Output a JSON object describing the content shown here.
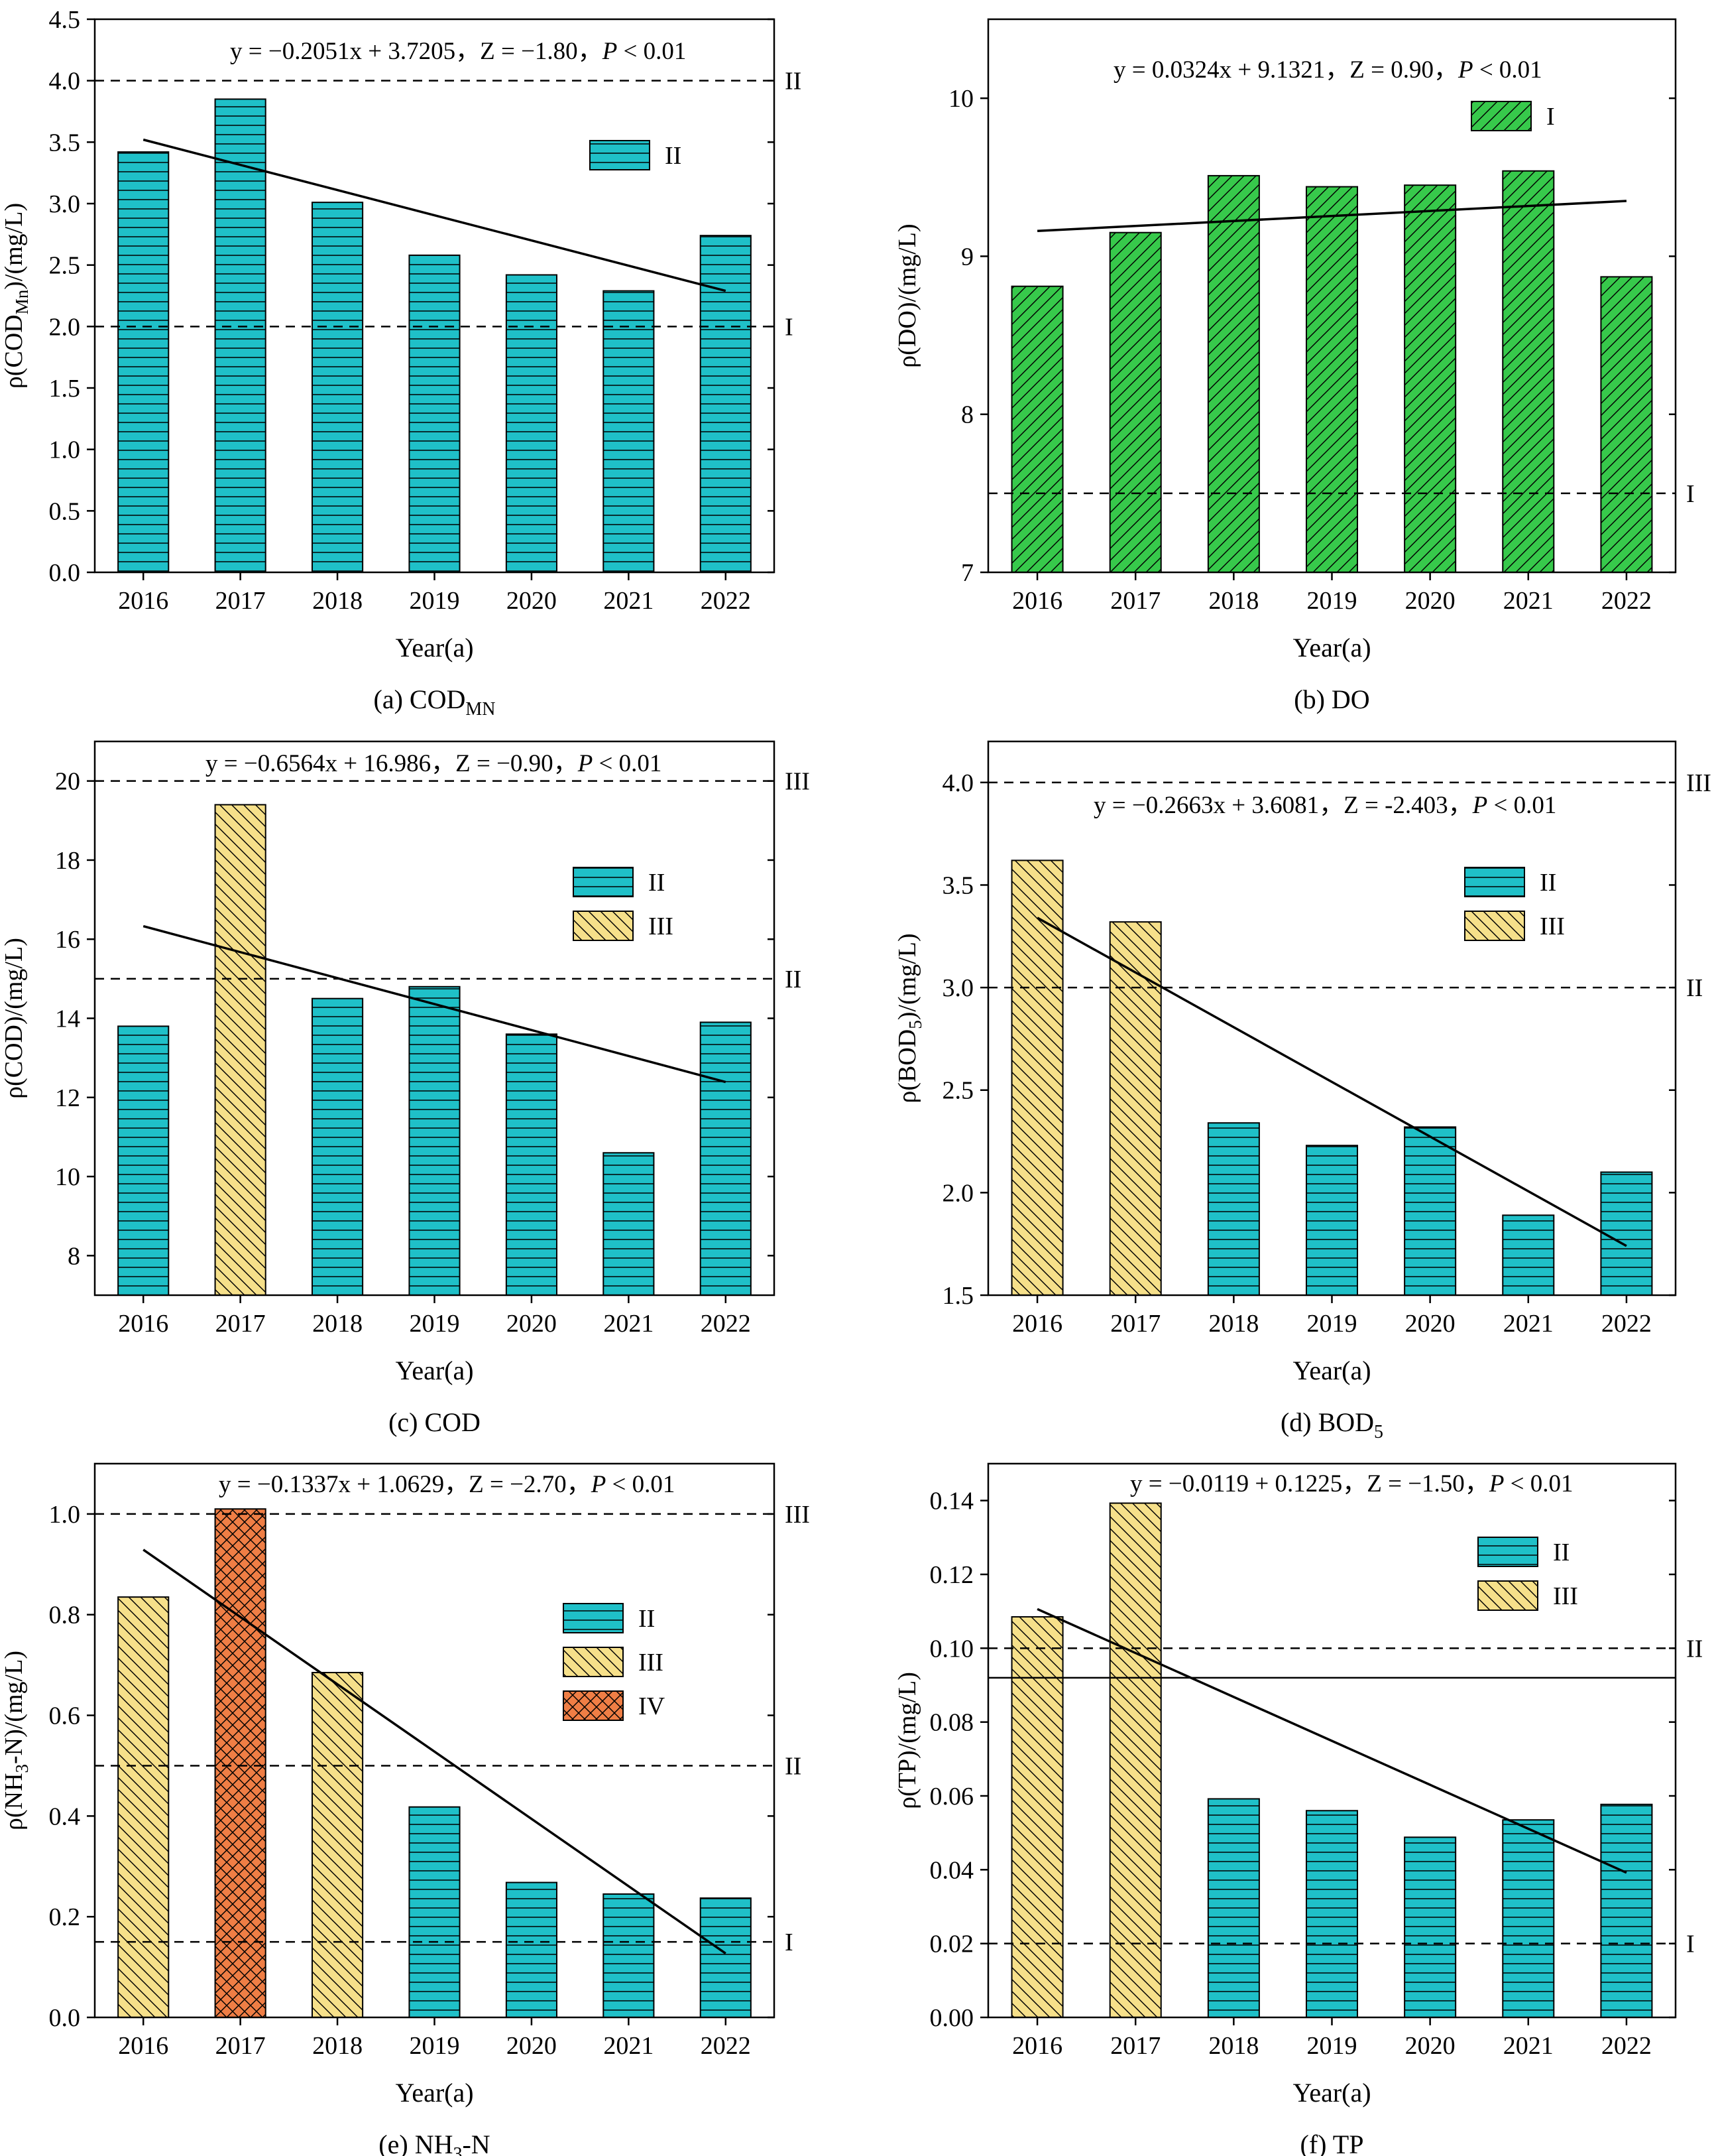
{
  "colors": {
    "II": "#1fc0c8",
    "III": "#f6e08a",
    "IV": "#ef7e45",
    "I_do": "#37c94b",
    "axis": "#000000"
  },
  "chart_data": [
    {
      "type": "bar",
      "id": "a",
      "title": "(a) COD",
      "title_sub": "MN",
      "xlabel": "Year(a)",
      "ylabel": "ρ(COD",
      "ylabel_sub": "Mn",
      "ylabel_tail": ")/(mg/L)",
      "categories": [
        "2016",
        "2017",
        "2018",
        "2019",
        "2020",
        "2021",
        "2022"
      ],
      "values": [
        3.42,
        3.85,
        3.01,
        2.58,
        2.42,
        2.29,
        2.74
      ],
      "classes": [
        "II",
        "II",
        "II",
        "II",
        "II",
        "II",
        "II"
      ],
      "ylim": [
        0,
        4.5
      ],
      "yticks": [
        0.0,
        0.5,
        1.0,
        1.5,
        2.0,
        2.5,
        3.0,
        3.5,
        4.0,
        4.5
      ],
      "ytick_labels": [
        "0.0",
        "0.5",
        "1.0",
        "1.5",
        "2.0",
        "2.5",
        "3.0",
        "3.5",
        "4.0",
        "4.5"
      ],
      "trend": [
        3.52,
        2.29
      ],
      "standards": [
        {
          "value": 4.0,
          "label": "II"
        },
        {
          "value": 2.0,
          "label": "I"
        }
      ],
      "legend": [
        "II"
      ],
      "equation": "y = −0.2051x + 3.7205，Z = −1.80，",
      "p_label": "P",
      "p_value": " < 0.01"
    },
    {
      "type": "bar",
      "id": "b",
      "title": "(b) DO",
      "title_sub": "",
      "xlabel": "Year(a)",
      "ylabel": "ρ(DO)/(mg/L)",
      "ylabel_sub": "",
      "ylabel_tail": "",
      "categories": [
        "2016",
        "2017",
        "2018",
        "2019",
        "2020",
        "2021",
        "2022"
      ],
      "values": [
        8.81,
        9.15,
        9.51,
        9.44,
        9.45,
        9.54,
        8.87
      ],
      "classes": [
        "I",
        "I",
        "I",
        "I",
        "I",
        "I",
        "I"
      ],
      "ylim": [
        7,
        10.5
      ],
      "yticks": [
        7,
        8,
        9,
        10
      ],
      "ytick_labels": [
        "7",
        "8",
        "9",
        "10"
      ],
      "trend": [
        9.16,
        9.35
      ],
      "standards": [
        {
          "value": 7.5,
          "label": "I"
        }
      ],
      "legend": [
        "I"
      ],
      "equation": "y = 0.0324x + 9.1321，Z = 0.90，",
      "p_label": "P",
      "p_value": " < 0.01"
    },
    {
      "type": "bar",
      "id": "c",
      "title": "(c) COD",
      "title_sub": "",
      "xlabel": "Year(a)",
      "ylabel": "ρ(COD)/(mg/L)",
      "ylabel_sub": "",
      "ylabel_tail": "",
      "categories": [
        "2016",
        "2017",
        "2018",
        "2019",
        "2020",
        "2021",
        "2022"
      ],
      "values": [
        13.8,
        19.4,
        14.5,
        14.8,
        13.6,
        10.6,
        13.9
      ],
      "classes": [
        "II",
        "III",
        "II",
        "II",
        "II",
        "II",
        "II"
      ],
      "ylim": [
        7,
        21
      ],
      "yticks": [
        8,
        10,
        12,
        14,
        16,
        18,
        20
      ],
      "ytick_labels": [
        "8",
        "10",
        "12",
        "14",
        "16",
        "18",
        "20"
      ],
      "trend": [
        16.33,
        12.39
      ],
      "standards": [
        {
          "value": 20,
          "label": "III"
        },
        {
          "value": 15,
          "label": "II"
        }
      ],
      "legend": [
        "II",
        "III"
      ],
      "equation": "y = −0.6564x + 16.986，Z = −0.90，",
      "p_label": "P",
      "p_value": " < 0.01"
    },
    {
      "type": "bar",
      "id": "d",
      "title": "(d) BOD",
      "title_sub": "5",
      "xlabel": "Year(a)",
      "ylabel": "ρ(BOD",
      "ylabel_sub": "5",
      "ylabel_tail": ")/(mg/L)",
      "categories": [
        "2016",
        "2017",
        "2018",
        "2019",
        "2020",
        "2021",
        "2022"
      ],
      "values": [
        3.62,
        3.32,
        2.34,
        2.23,
        2.32,
        1.89,
        2.1
      ],
      "classes": [
        "III",
        "III",
        "II",
        "II",
        "II",
        "II",
        "II"
      ],
      "ylim": [
        1.5,
        4.2
      ],
      "yticks": [
        1.5,
        2.0,
        2.5,
        3.0,
        3.5,
        4.0
      ],
      "ytick_labels": [
        "1.5",
        "2.0",
        "2.5",
        "3.0",
        "3.5",
        "4.0"
      ],
      "trend": [
        3.34,
        1.74
      ],
      "standards": [
        {
          "value": 4.0,
          "label": "III"
        },
        {
          "value": 3.0,
          "label": "II"
        }
      ],
      "legend": [
        "II",
        "III"
      ],
      "equation": "y = −0.2663x + 3.6081，Z = -2.403，",
      "p_label": "P",
      "p_value": " < 0.01"
    },
    {
      "type": "bar",
      "id": "e",
      "title": "(e) NH",
      "title_sub": "3",
      "title_tail": "-N",
      "xlabel": "Year(a)",
      "ylabel": "ρ(NH",
      "ylabel_sub": "3",
      "ylabel_tail": "-N)/(mg/L)",
      "categories": [
        "2016",
        "2017",
        "2018",
        "2019",
        "2020",
        "2021",
        "2022"
      ],
      "values": [
        0.835,
        1.01,
        0.685,
        0.418,
        0.268,
        0.245,
        0.237
      ],
      "classes": [
        "III",
        "IV",
        "III",
        "II",
        "II",
        "II",
        "II"
      ],
      "ylim": [
        0,
        1.1
      ],
      "yticks": [
        0.0,
        0.2,
        0.4,
        0.6,
        0.8,
        1.0
      ],
      "ytick_labels": [
        "0.0",
        "0.2",
        "0.4",
        "0.6",
        "0.8",
        "1.0"
      ],
      "trend": [
        0.929,
        0.127
      ],
      "standards": [
        {
          "value": 1.0,
          "label": "III"
        },
        {
          "value": 0.5,
          "label": "II"
        },
        {
          "value": 0.15,
          "label": "I"
        }
      ],
      "legend": [
        "II",
        "III",
        "IV"
      ],
      "equation": "y = −0.1337x + 1.0629，Z = −2.70，",
      "p_label": "P",
      "p_value": " < 0.01"
    },
    {
      "type": "bar",
      "id": "f",
      "title": "(f) TP",
      "title_sub": "",
      "xlabel": "Year(a)",
      "ylabel": "ρ(TP)/(mg/L)",
      "ylabel_sub": "",
      "ylabel_tail": "",
      "categories": [
        "2016",
        "2017",
        "2018",
        "2019",
        "2020",
        "2021",
        "2022"
      ],
      "values": [
        0.1085,
        0.1393,
        0.0592,
        0.056,
        0.0488,
        0.0535,
        0.0577
      ],
      "classes": [
        "III",
        "III",
        "II",
        "II",
        "II",
        "II",
        "II"
      ],
      "ylim": [
        0,
        0.15
      ],
      "yticks": [
        0.0,
        0.02,
        0.04,
        0.06,
        0.08,
        0.1,
        0.12,
        0.14
      ],
      "ytick_labels": [
        "0.00",
        "0.02",
        "0.04",
        "0.06",
        "0.08",
        "0.10",
        "0.12",
        "0.14"
      ],
      "trend": [
        0.1106,
        0.0392
      ],
      "standards": [
        {
          "value": 0.1,
          "label": "II"
        },
        {
          "value": 0.02,
          "label": "I"
        }
      ],
      "reference_line": 0.092,
      "legend": [
        "II",
        "III"
      ],
      "equation": "y = −0.0119 + 0.1225，Z = −1.50，",
      "p_label": "P",
      "p_value": " < 0.01"
    }
  ]
}
